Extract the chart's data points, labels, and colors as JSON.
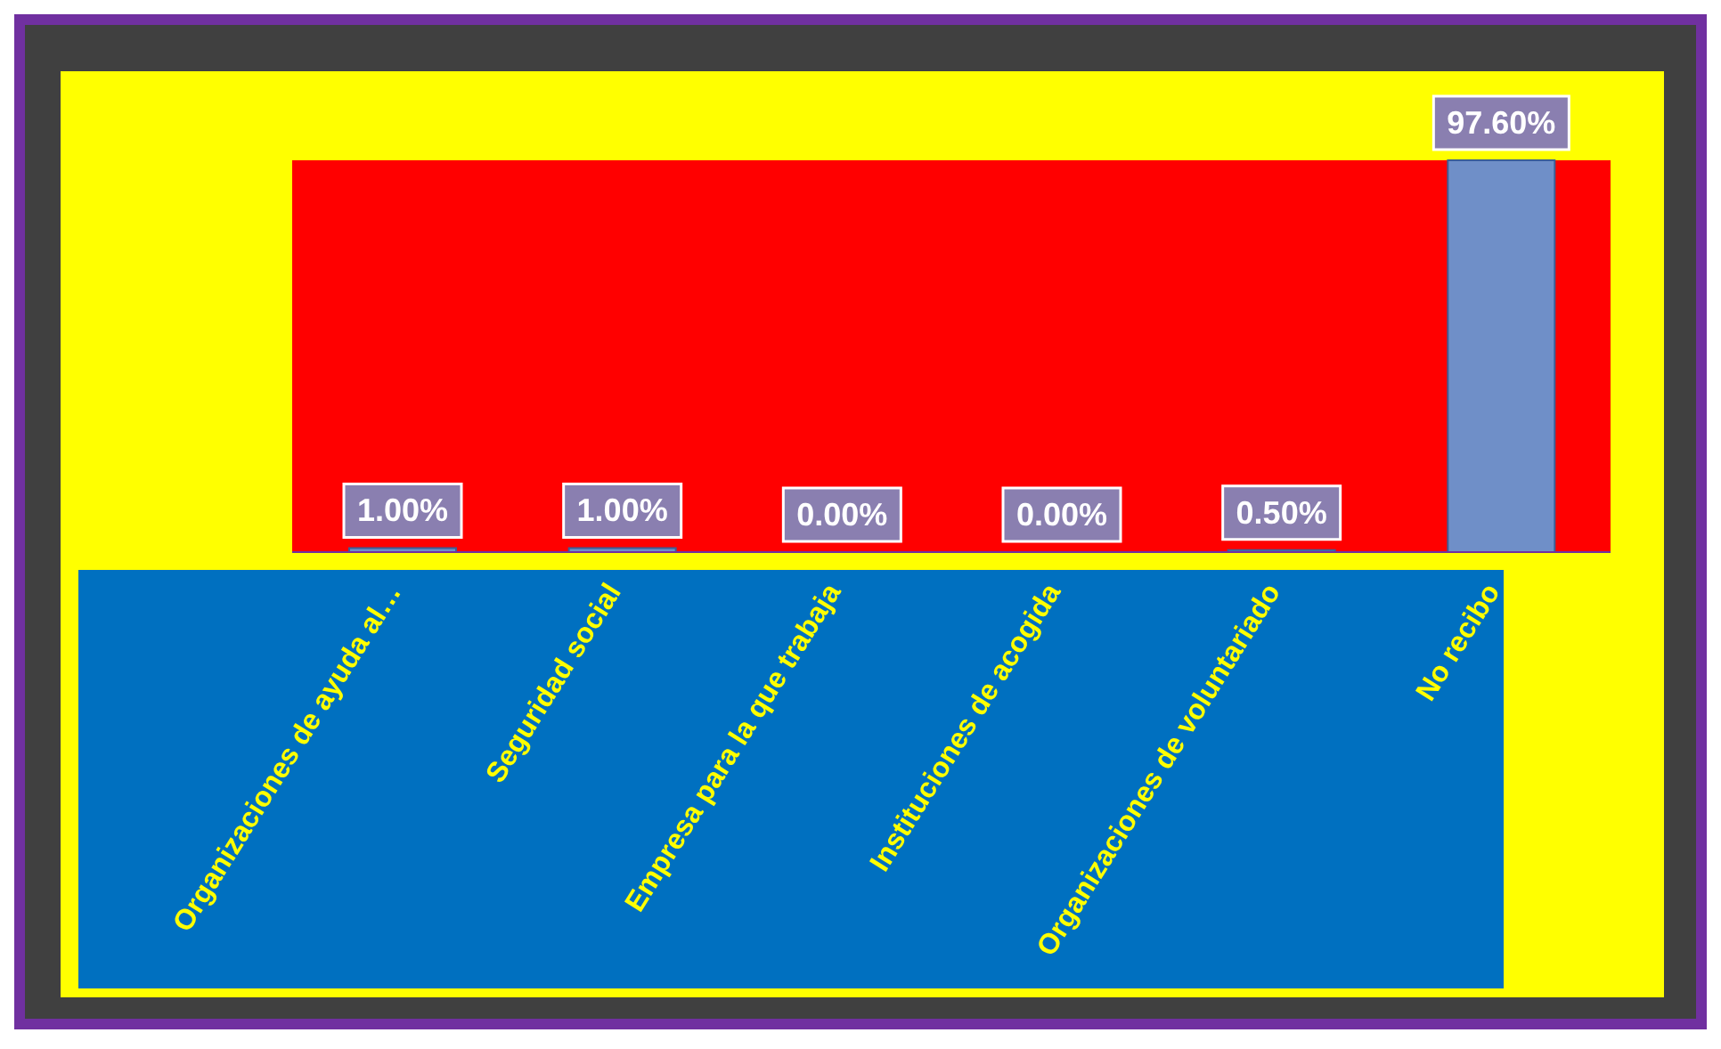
{
  "chart_data": {
    "type": "bar",
    "categories": [
      "Organizaciones de ayuda al…",
      "Seguridad social",
      "Empresa para la que trabaja",
      "Instituciones de acogida",
      "Organizaciones de voluntariado",
      "No recibo"
    ],
    "values": [
      1.0,
      1.0,
      0.0,
      0.0,
      0.5,
      97.6
    ],
    "value_labels": [
      "1.00%",
      "1.00%",
      "0.00%",
      "0.00%",
      "0.50%",
      "97.60%"
    ],
    "color": "#6f8fc8"
  }
}
